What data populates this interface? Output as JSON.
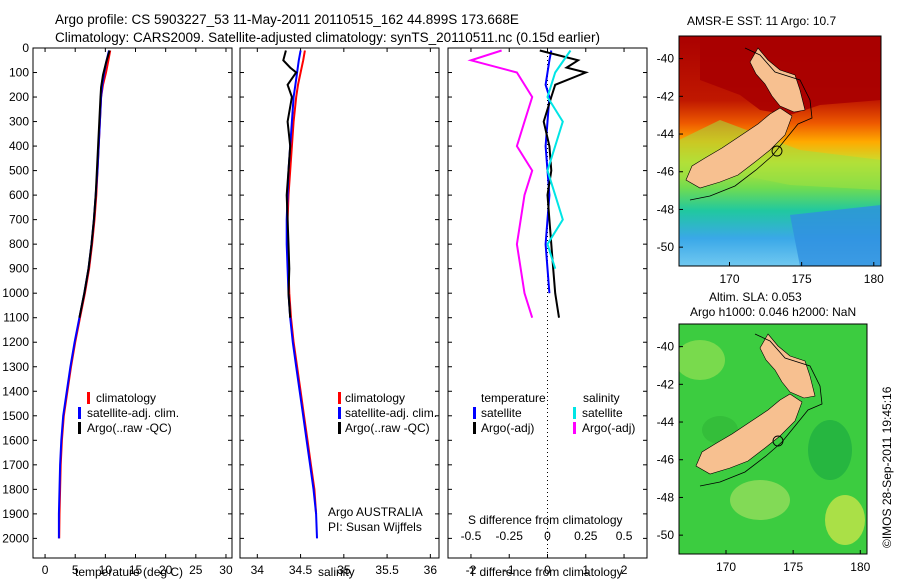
{
  "header": {
    "line1": "Argo profile: CS 5903227_53 11-May-2011 20110515_162 44.899S 173.668E",
    "line2": "Climatology: CARS2009. Satellite-adjusted climatology: synTS_20110511.nc (0.15d earlier)"
  },
  "chart_data": [
    {
      "type": "line",
      "panel": "temperature",
      "xlabel": "temperature (deg C)",
      "xlim": [
        -2,
        31
      ],
      "ylim": [
        0,
        2080
      ],
      "x_ticks": [
        "0",
        "5",
        "10",
        "15",
        "20",
        "25",
        "30"
      ],
      "y_ticks": [
        "0",
        "100",
        "200",
        "300",
        "400",
        "500",
        "600",
        "700",
        "800",
        "900",
        "1000",
        "1100",
        "1200",
        "1300",
        "1400",
        "1500",
        "1600",
        "1700",
        "1800",
        "1900",
        "2000"
      ],
      "legend": [
        "climatology",
        "satellite-adj. clim.",
        "Argo(..raw -QC)"
      ],
      "series": [
        {
          "name": "climatology",
          "color": "#ff0000",
          "x": [
            10.8,
            10.5,
            10.1,
            9.6,
            9.3,
            9.1,
            8.9,
            8.7,
            8.5,
            8.2,
            7.8,
            7.3,
            6.6,
            5.8,
            5.0,
            4.3,
            3.7,
            3.1,
            2.8,
            2.6,
            2.5,
            2.4,
            2.35
          ],
          "y": [
            10,
            50,
            100,
            150,
            200,
            300,
            400,
            500,
            600,
            700,
            800,
            900,
            1000,
            1100,
            1200,
            1300,
            1400,
            1500,
            1600,
            1700,
            1800,
            1900,
            2000
          ]
        },
        {
          "name": "satellite-adj. clim.",
          "color": "#0000ff",
          "x": [
            10.6,
            10.2,
            9.8,
            9.5,
            9.3,
            9.1,
            8.9,
            8.7,
            8.4,
            8.1,
            7.7,
            7.2,
            6.5,
            5.7,
            4.9,
            4.2,
            3.6,
            3.0,
            2.7,
            2.5,
            2.4,
            2.3,
            2.3
          ],
          "y": [
            10,
            50,
            100,
            150,
            200,
            300,
            400,
            500,
            600,
            700,
            800,
            900,
            1000,
            1100,
            1200,
            1300,
            1400,
            1500,
            1600,
            1700,
            1800,
            1900,
            2000
          ]
        },
        {
          "name": "Argo(..raw -QC)",
          "color": "#000000",
          "x": [
            10.7,
            10.1,
            9.6,
            9.3,
            9.2,
            9.0,
            8.8,
            8.6,
            8.4,
            8.1,
            7.7,
            7.2,
            6.5,
            5.7
          ],
          "y": [
            10,
            60,
            110,
            160,
            200,
            300,
            400,
            500,
            600,
            700,
            800,
            900,
            1000,
            1100
          ]
        }
      ]
    },
    {
      "type": "line",
      "panel": "salinity",
      "xlabel": "salinity",
      "xlim": [
        33.8,
        36.1
      ],
      "ylim": [
        0,
        2080
      ],
      "x_ticks": [
        "34",
        "34.5",
        "35",
        "35.5",
        "36"
      ],
      "legend": [
        "climatology",
        "satellite-adj. clim.",
        "Argo(..raw -QC)"
      ],
      "annotation": [
        "Argo AUSTRALIA",
        "PI: Susan Wijffels"
      ],
      "series": [
        {
          "name": "climatology",
          "color": "#ff0000",
          "x": [
            34.55,
            34.53,
            34.5,
            34.47,
            34.45,
            34.42,
            34.4,
            34.38,
            34.36,
            34.35,
            34.35,
            34.36,
            34.37,
            34.39,
            34.42,
            34.46,
            34.5,
            34.54,
            34.58,
            34.62,
            34.66,
            34.68
          ],
          "y": [
            10,
            50,
            100,
            150,
            200,
            300,
            400,
            500,
            600,
            700,
            800,
            900,
            1000,
            1100,
            1200,
            1300,
            1400,
            1500,
            1600,
            1700,
            1800,
            1900
          ]
        },
        {
          "name": "satellite-adj. clim.",
          "color": "#0000ff",
          "x": [
            34.5,
            34.48,
            34.46,
            34.44,
            34.42,
            34.4,
            34.38,
            34.36,
            34.35,
            34.34,
            34.34,
            34.35,
            34.36,
            34.38,
            34.41,
            34.45,
            34.49,
            34.53,
            34.57,
            34.61,
            34.65,
            34.68,
            34.69
          ],
          "y": [
            10,
            50,
            100,
            150,
            200,
            300,
            400,
            500,
            600,
            700,
            800,
            900,
            1000,
            1100,
            1200,
            1300,
            1400,
            1500,
            1600,
            1700,
            1800,
            1900,
            2000
          ]
        },
        {
          "name": "Argo(..raw -QC)",
          "color": "#000000",
          "x": [
            34.33,
            34.3,
            34.38,
            34.45,
            34.35,
            34.4,
            34.35,
            34.38,
            34.36,
            34.34,
            34.35,
            34.36,
            34.37,
            34.36,
            34.38
          ],
          "y": [
            10,
            50,
            80,
            100,
            150,
            200,
            300,
            400,
            500,
            600,
            700,
            800,
            900,
            1000,
            1100
          ]
        }
      ]
    },
    {
      "type": "line",
      "panel": "difference",
      "xlabel": "T difference from climatology",
      "x2label": "S difference from climatology",
      "xlim": [
        -2.6,
        2.6
      ],
      "ylim": [
        0,
        2080
      ],
      "x_ticks": [
        "-2",
        "-1",
        "0",
        "1",
        "2"
      ],
      "x2_ticks": [
        "-0.5",
        "-0.25",
        "0",
        "0.25",
        "0.5"
      ],
      "legend_temperature": [
        "temperature",
        "satellite",
        "Argo(-adj)"
      ],
      "legend_salinity": [
        "salinity",
        "satellite",
        "Argo(-adj)"
      ],
      "series": [
        {
          "name": "temperature satellite",
          "color": "#0000ff",
          "x": [
            0.1,
            0.05,
            0.0,
            -0.05,
            0.05,
            0.0,
            -0.05,
            0.0,
            0.05,
            0.0,
            -0.05,
            0.0,
            0.05
          ],
          "y": [
            10,
            50,
            100,
            150,
            200,
            300,
            400,
            500,
            600,
            700,
            800,
            900,
            1000
          ]
        },
        {
          "name": "temperature Argo(-adj)",
          "color": "#000000",
          "x": [
            -0.2,
            0.8,
            0.5,
            1.0,
            0.2,
            0.1,
            -0.1,
            0.05,
            0.1,
            0.0,
            0.05,
            0.1,
            0.15,
            0.2,
            0.25,
            0.3
          ],
          "y": [
            10,
            50,
            80,
            100,
            150,
            200,
            300,
            400,
            500,
            600,
            700,
            800,
            900,
            1000,
            1050,
            1100
          ]
        },
        {
          "name": "salinity satellite",
          "color": "#00e5e5",
          "x": [
            0.15,
            0.05,
            0.0,
            0.1,
            0.05,
            0.0,
            0.05,
            0.1,
            0.0,
            0.05
          ],
          "y": [
            10,
            100,
            200,
            300,
            400,
            500,
            600,
            700,
            800,
            900
          ]
        },
        {
          "name": "salinity Argo(-adj)",
          "color": "#ff00ff",
          "x": [
            -0.3,
            -0.5,
            -0.2,
            -0.1,
            -0.15,
            -0.2,
            -0.1,
            -0.15,
            -0.2,
            -0.15,
            -0.1
          ],
          "y": [
            10,
            50,
            100,
            200,
            300,
            400,
            500,
            600,
            800,
            1000,
            1100
          ]
        }
      ]
    },
    {
      "type": "heatmap",
      "panel": "sst_map",
      "title": "AMSR-E SST: 11 Argo: 10.7",
      "x_ticks": [
        "170",
        "175",
        "180"
      ],
      "y_ticks": [
        "-40",
        "-42",
        "-44",
        "-46",
        "-48",
        "-50"
      ],
      "xlim": [
        166.5,
        180.5
      ],
      "ylim": [
        -51,
        -38.8
      ],
      "argo_position": [
        173.668,
        -44.899
      ]
    },
    {
      "type": "heatmap",
      "panel": "sla_map",
      "title": "Altim. SLA: 0.053",
      "subtitle": "Argo h1000: 0.046 h2000: NaN",
      "x_ticks": [
        "170",
        "175",
        "180"
      ],
      "y_ticks": [
        "-40",
        "-42",
        "-44",
        "-46",
        "-48",
        "-50"
      ],
      "xlim": [
        166.5,
        180.5
      ],
      "ylim": [
        -51,
        -38.8
      ],
      "argo_position": [
        173.668,
        -44.899
      ]
    }
  ],
  "footer": {
    "stamp": "©IMOS 28-Sep-2011 19:45:16"
  },
  "colors": {
    "land": "#f7c090",
    "sst_warm": "#aa0000",
    "sst_mid": "#ffaa00",
    "sst_green": "#88e040",
    "sst_cool": "#20c0a0",
    "sla_green": "#33cc33"
  }
}
